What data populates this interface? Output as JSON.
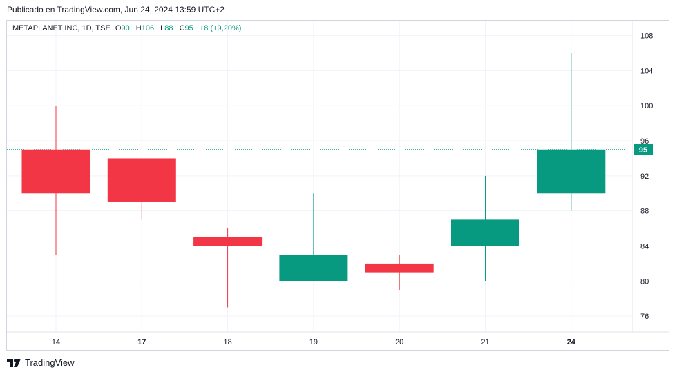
{
  "header": {
    "published": "Publicado en TradingView.com, Jun 24, 2024 13:59 UTC+2"
  },
  "legend": {
    "symbol": "METAPLANET INC, 1D, TSE",
    "o_label": "O",
    "o_value": "90",
    "h_label": "H",
    "h_value": "106",
    "l_label": "L",
    "l_value": "88",
    "c_label": "C",
    "c_value": "95",
    "change": "+8 (+9,20%)"
  },
  "footer": {
    "brand": "TradingView"
  },
  "colors": {
    "up": "#089981",
    "down": "#f23645",
    "grid": "#f0f3fa",
    "text": "#131722"
  },
  "last_price_label": "95",
  "chart_data": {
    "type": "candlestick",
    "x_ticks": [
      "14",
      "17",
      "18",
      "19",
      "20",
      "21",
      "24"
    ],
    "x_ticks_bold": [
      "17",
      "24"
    ],
    "y_ticks": [
      "76",
      "80",
      "84",
      "88",
      "92",
      "96",
      "100",
      "104",
      "108"
    ],
    "ylim": [
      74.2,
      109.7
    ],
    "last_price": 95,
    "candles": [
      {
        "date": "14",
        "open": 95,
        "high": 100,
        "low": 83,
        "close": 90
      },
      {
        "date": "17",
        "open": 94,
        "high": 94,
        "low": 87,
        "close": 89
      },
      {
        "date": "18",
        "open": 85,
        "high": 86,
        "low": 77,
        "close": 84
      },
      {
        "date": "19",
        "open": 80,
        "high": 90,
        "low": 80,
        "close": 83
      },
      {
        "date": "20",
        "open": 82,
        "high": 83,
        "low": 79,
        "close": 81
      },
      {
        "date": "21",
        "open": 84,
        "high": 92,
        "low": 80,
        "close": 87
      },
      {
        "date": "24",
        "open": 90,
        "high": 106,
        "low": 88,
        "close": 95
      }
    ]
  }
}
